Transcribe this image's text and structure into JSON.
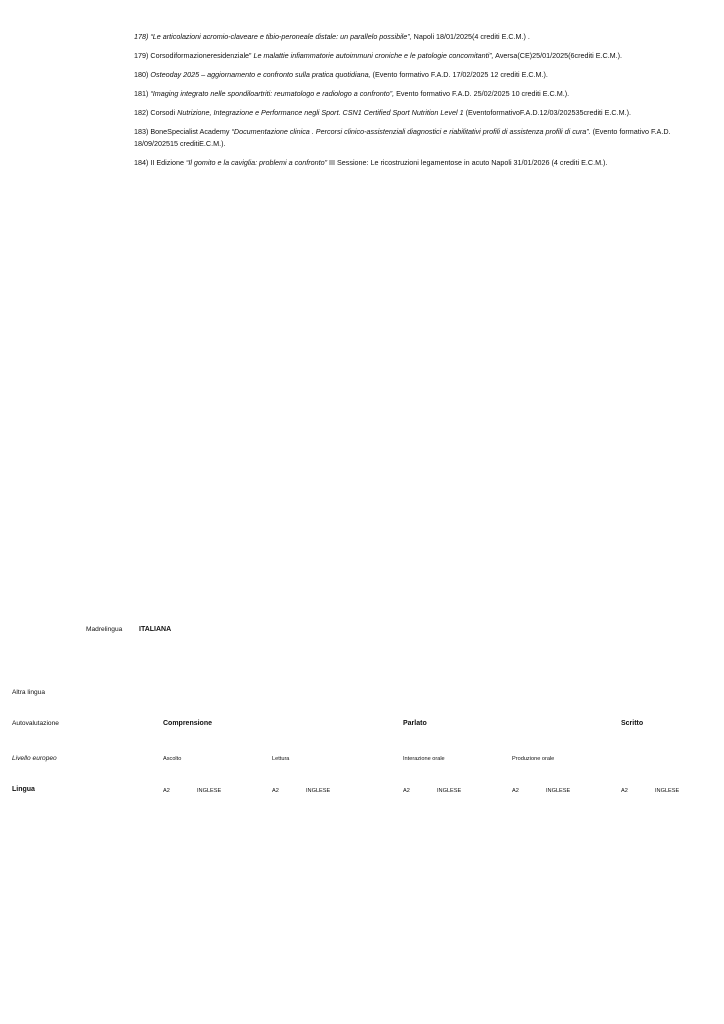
{
  "entries": [
    {
      "parts": [
        {
          "t": "178) “Le articolazioni acromio-claveare e tibio-peroneale distale: un parallelo possibile”,",
          "i": true
        },
        {
          "t": " Napoli 18/01/2025(4 crediti E.C.M.) .",
          "i": false
        }
      ]
    },
    {
      "parts": [
        {
          "t": "179) Corsodiformazioneresidenziale”    ",
          "i": false
        },
        {
          "t": "Le malattie infiammatorie autoimmuni croniche e le patologie concomitanti”,",
          "i": true
        },
        {
          "t": " Aversa(CE)25/01/2025(6crediti E.C.M.).",
          "i": false
        }
      ]
    },
    {
      "parts": [
        {
          "t": "180) ",
          "i": false
        },
        {
          "t": "Osteoday 2025 – aggiornamento e confronto sulla pratica quotidiana,",
          "i": true
        },
        {
          "t": " (Evento formativo F.A.D. 17/02/2025 12 crediti E.C.M.).",
          "i": false
        }
      ]
    },
    {
      "parts": [
        {
          "t": "181) ",
          "i": false
        },
        {
          "t": "“Imaging integrato nelle spondiloartriti: reumatologo e radiologo a confronto”,",
          "i": true
        },
        {
          "t": " Evento formativo F.A.D. 25/02/2025 10 crediti E.C.M.).",
          "i": false
        }
      ]
    },
    {
      "parts": [
        {
          "t": "182) Corsodi  ",
          "i": false
        },
        {
          "t": "Nutrizione, Integrazione e Performance negli Sport. CSN1 Certified Sport Nutrition Level 1",
          "i": true
        },
        {
          "t": " (EventoformativoF.A.D.12/03/202535crediti E.C.M.).",
          "i": false
        }
      ]
    },
    {
      "parts": [
        {
          "t": "183) BoneSpecialist Academy  ",
          "i": false
        },
        {
          "t": "“Documentazione clinica . Percorsi clinico-assistenziali diagnostici e riabilitativi profili di assistenza profili di cura”.",
          "i": true
        },
        {
          "t": " (Evento formativo F.A.D. 18/09/202515 creditiE.C.M.).",
          "i": false
        }
      ]
    },
    {
      "parts": [
        {
          "t": "184) II Edizione ",
          "i": false
        },
        {
          "t": "“Il gomito e la caviglia: problemi a confronto”",
          "i": true
        },
        {
          "t": " III Sessione: Le ricostruzioni legamentose in acuto Napoli 31/01/2026 (4 crediti E.C.M.).",
          "i": false
        }
      ]
    }
  ],
  "languages": {
    "mother_label": "Madrelingua",
    "mother_value": "ITALIANA",
    "other_label": "Altra lingua",
    "self_label": "Autovalutazione",
    "level_label": "Livello europeo",
    "lang_label": "Lingua",
    "groups": {
      "comprensione": "Comprensione",
      "parlato": "Parlato",
      "scritto": "Scritto"
    },
    "subheads": [
      "Ascolto",
      "Lettura",
      "Interazione orale",
      "Produzione orale"
    ],
    "cells": [
      {
        "level": "A2",
        "lang": "INGLESE"
      },
      {
        "level": "A2",
        "lang": "INGLESE"
      },
      {
        "level": "A2",
        "lang": "INGLESE"
      },
      {
        "level": "A2",
        "lang": "INGLESE"
      },
      {
        "level": "A2",
        "lang": "INGLESE"
      }
    ]
  }
}
